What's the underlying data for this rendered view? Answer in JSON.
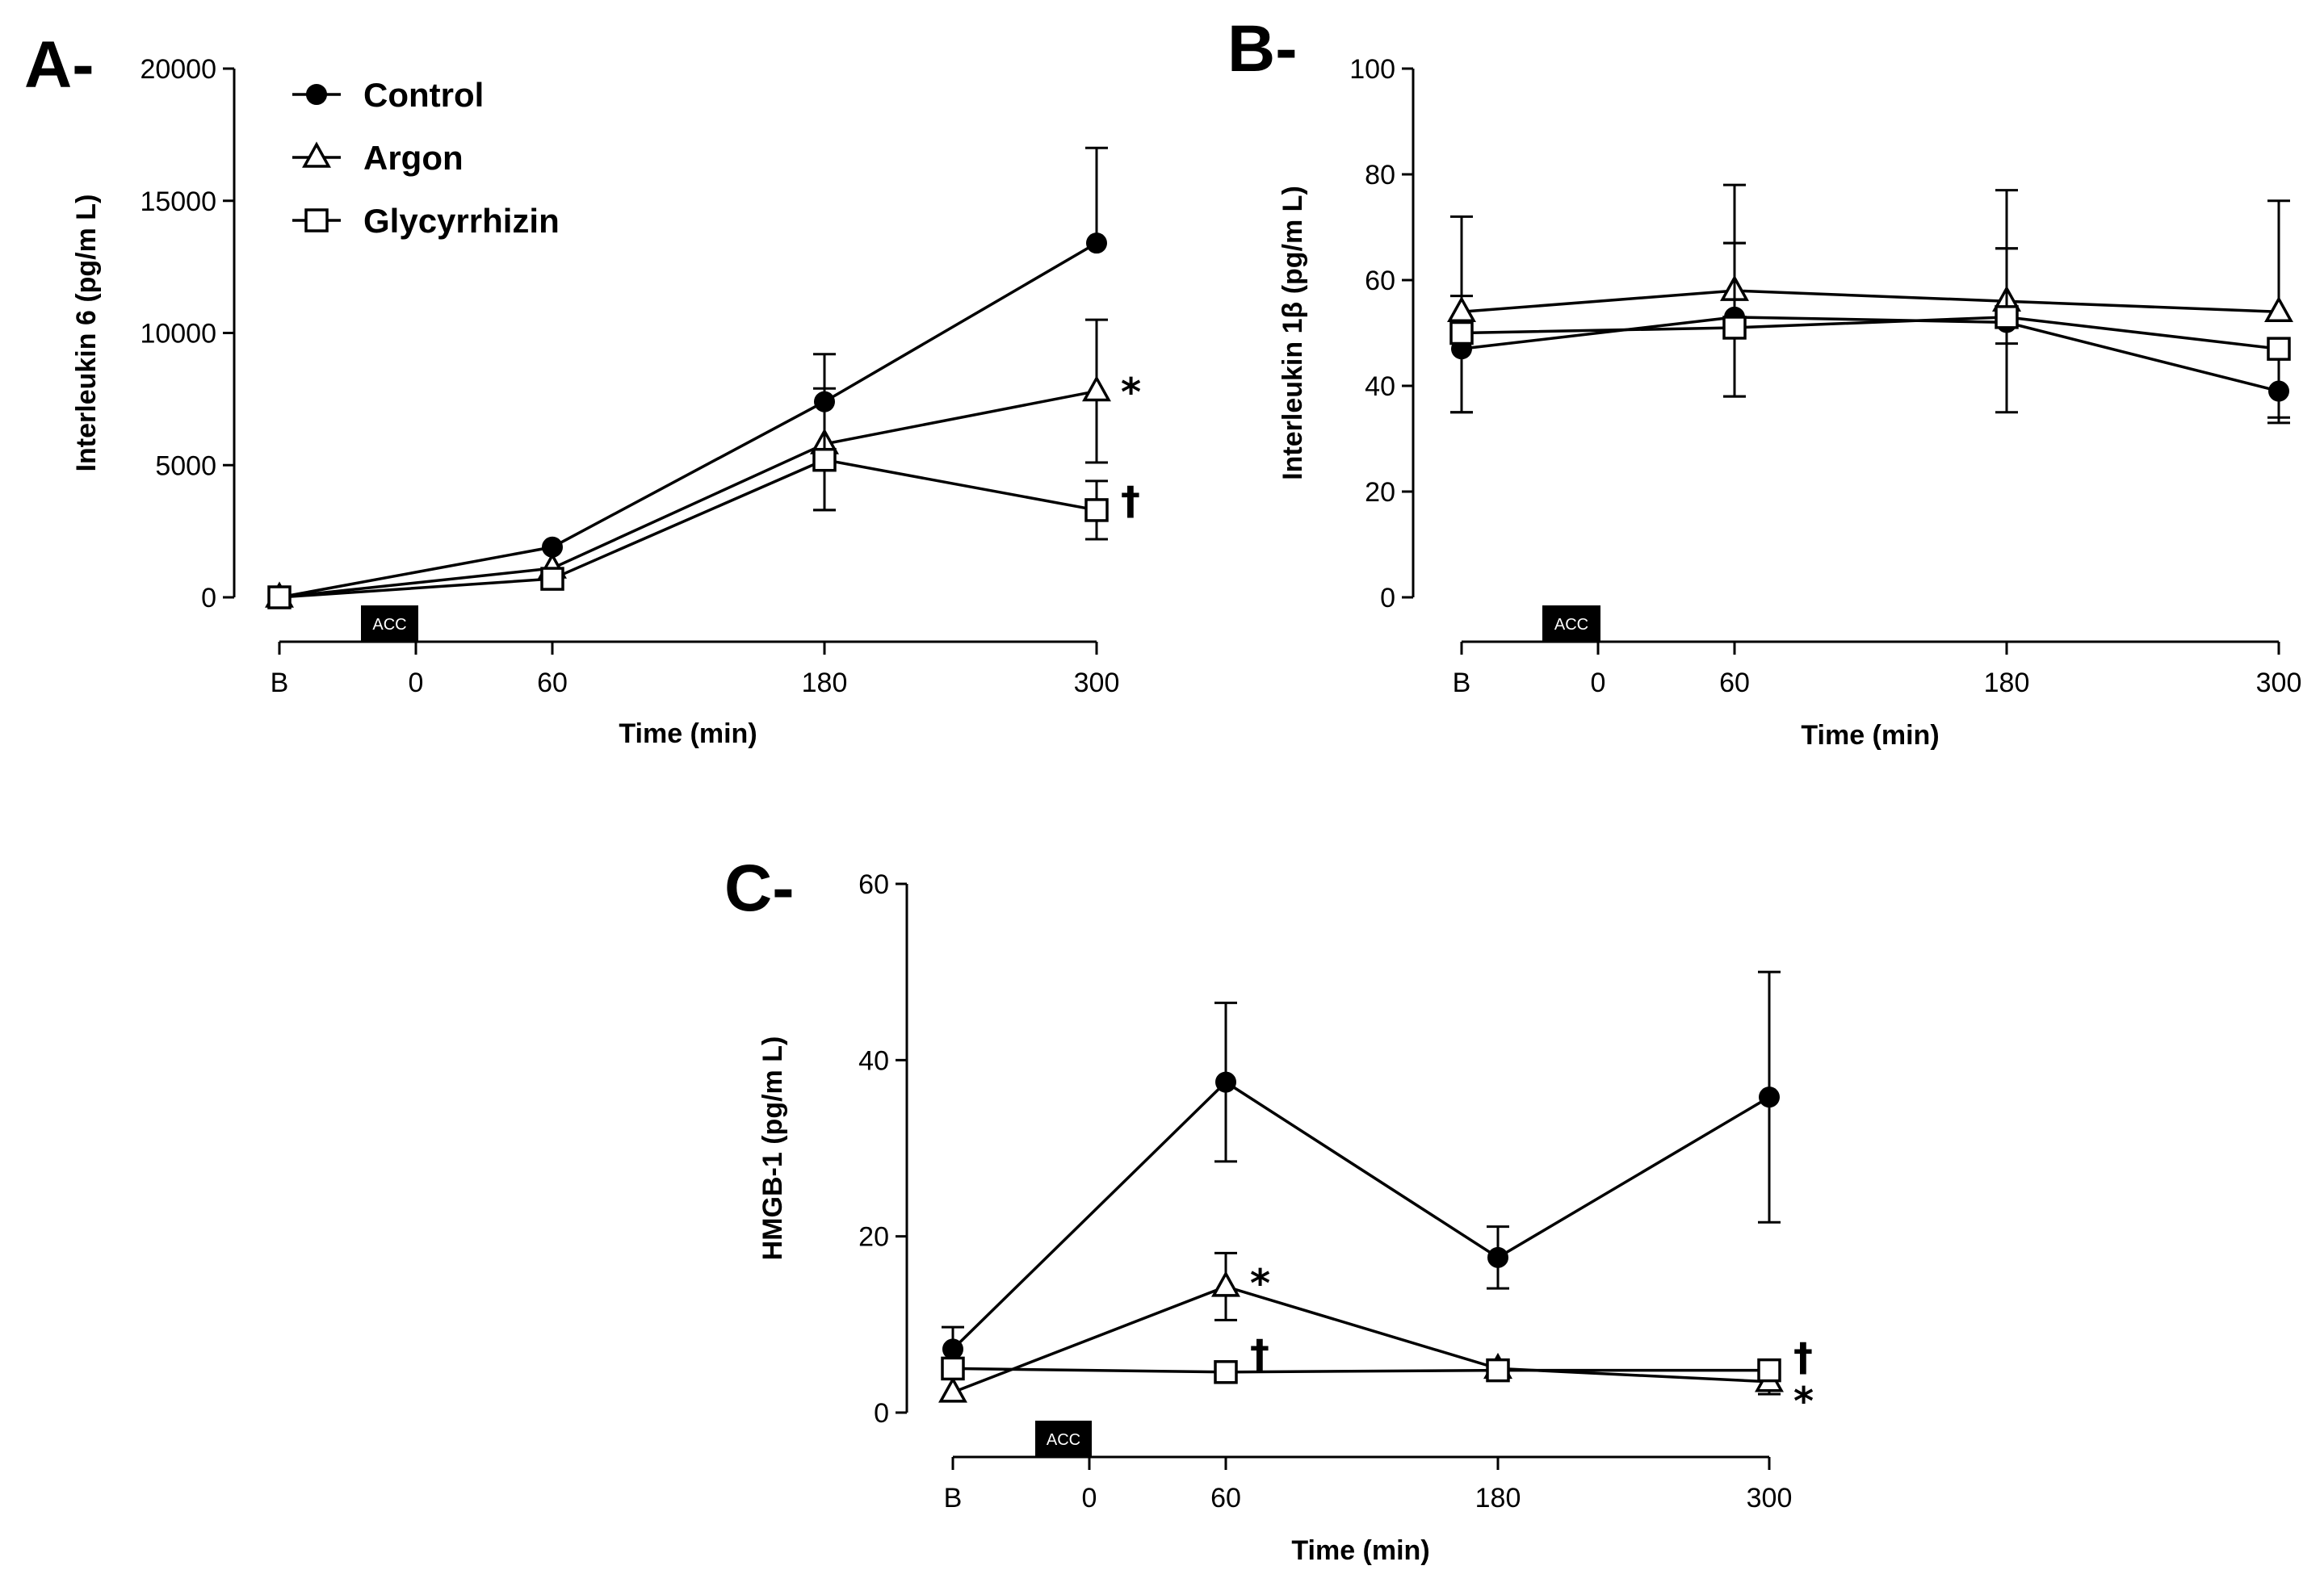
{
  "chart_data": [
    {
      "type": "line",
      "panel": "A-",
      "ylabel": "Interleukin 6 (pg/m L)",
      "xlabel": "Time (min)",
      "ylim": [
        0,
        20000
      ],
      "yticks": [
        0,
        5000,
        10000,
        15000,
        20000
      ],
      "ytick_labels": [
        "0",
        "5000",
        "10000",
        "15000",
        "20000"
      ],
      "xticks": [
        "B",
        "0",
        "60",
        "180",
        "300"
      ],
      "marker_label": "ACC",
      "legend": [
        {
          "name": "Control",
          "marker": "circle"
        },
        {
          "name": "Argon",
          "marker": "triangle"
        },
        {
          "name": "Glycyrrhizin",
          "marker": "square"
        }
      ],
      "series": [
        {
          "name": "Control",
          "marker": "circle",
          "x": [
            "B",
            "60",
            "180",
            "300"
          ],
          "values": [
            0,
            1900,
            7400,
            13400
          ],
          "err_up": [
            0,
            0,
            1800,
            3600
          ],
          "err_down": [
            0,
            0,
            0,
            0
          ]
        },
        {
          "name": "Argon",
          "marker": "triangle",
          "x": [
            "B",
            "60",
            "180",
            "300"
          ],
          "values": [
            0,
            1100,
            5800,
            7800
          ],
          "err_up": [
            0,
            0,
            0,
            2700
          ],
          "err_down": [
            0,
            0,
            2500,
            2700
          ]
        },
        {
          "name": "Glycyrrhizin",
          "marker": "square",
          "x": [
            "B",
            "60",
            "180",
            "300"
          ],
          "values": [
            0,
            700,
            5200,
            3300
          ],
          "err_up": [
            0,
            0,
            2700,
            1100
          ],
          "err_down": [
            0,
            0,
            1900,
            1100
          ]
        }
      ],
      "annotations": [
        {
          "text": "*",
          "x": "300",
          "y": 7800
        },
        {
          "text": "†",
          "x": "300",
          "y": 3700
        }
      ]
    },
    {
      "type": "line",
      "panel": "B-",
      "ylabel": "Interleukin 1β (pg/m L)",
      "xlabel": "Time (min)",
      "ylim": [
        0,
        100
      ],
      "yticks": [
        0,
        20,
        40,
        60,
        80,
        100
      ],
      "ytick_labels": [
        "0",
        "20",
        "40",
        "60",
        "80",
        "100"
      ],
      "xticks": [
        "B",
        "0",
        "60",
        "180",
        "300"
      ],
      "marker_label": "ACC",
      "series": [
        {
          "name": "Control",
          "marker": "circle",
          "x": [
            "B",
            "60",
            "180",
            "300"
          ],
          "values": [
            47,
            53,
            52,
            39
          ],
          "err_up": [
            10,
            14,
            14,
            0
          ],
          "err_down": [
            12,
            15,
            17,
            6
          ]
        },
        {
          "name": "Argon",
          "marker": "triangle",
          "x": [
            "B",
            "60",
            "180",
            "300"
          ],
          "values": [
            54,
            58,
            56,
            54
          ],
          "err_up": [
            18,
            20,
            21,
            21
          ],
          "err_down": [
            0,
            0,
            0,
            0
          ]
        },
        {
          "name": "Glycyrrhizin",
          "marker": "square",
          "x": [
            "B",
            "60",
            "180",
            "300"
          ],
          "values": [
            50,
            51,
            53,
            47
          ],
          "err_up": [
            0,
            16,
            13,
            0
          ],
          "err_down": [
            15,
            13,
            5,
            13
          ]
        }
      ],
      "annotations": []
    },
    {
      "type": "line",
      "panel": "C-",
      "ylabel": "HMGB-1 (pg/m L)",
      "xlabel": "Time (min)",
      "ylim": [
        0,
        60
      ],
      "yticks": [
        0,
        20,
        40,
        60
      ],
      "ytick_labels": [
        "0",
        "20",
        "40",
        "60"
      ],
      "xticks": [
        "B",
        "0",
        "60",
        "180",
        "300"
      ],
      "marker_label": "ACC",
      "series": [
        {
          "name": "Control",
          "marker": "circle",
          "x": [
            "B",
            "60",
            "180",
            "300"
          ],
          "values": [
            7.2,
            37.5,
            17.6,
            35.8
          ],
          "err_up": [
            2.5,
            9,
            3.5,
            14.2
          ],
          "err_down": [
            0,
            9,
            3.5,
            14.2
          ]
        },
        {
          "name": "Argon",
          "marker": "triangle",
          "x": [
            "B",
            "60",
            "180",
            "300"
          ],
          "values": [
            2.3,
            14.3,
            5,
            3.5
          ],
          "err_up": [
            0,
            3.8,
            0.8,
            1.4
          ],
          "err_down": [
            0,
            3.8,
            0,
            1.4
          ]
        },
        {
          "name": "Glycyrrhizin",
          "marker": "square",
          "x": [
            "B",
            "60",
            "180",
            "300"
          ],
          "values": [
            5,
            4.6,
            4.8,
            4.8
          ],
          "err_up": [
            0,
            0,
            0,
            0
          ],
          "err_down": [
            0,
            0,
            0,
            0
          ]
        }
      ],
      "annotations": [
        {
          "text": "*",
          "x": "60",
          "y": 14.8
        },
        {
          "text": "†",
          "x": "60",
          "y": 6.8
        },
        {
          "text": "†",
          "x": "300",
          "y": 6.4
        },
        {
          "text": "*",
          "x": "300",
          "y": 1.4
        }
      ]
    }
  ]
}
